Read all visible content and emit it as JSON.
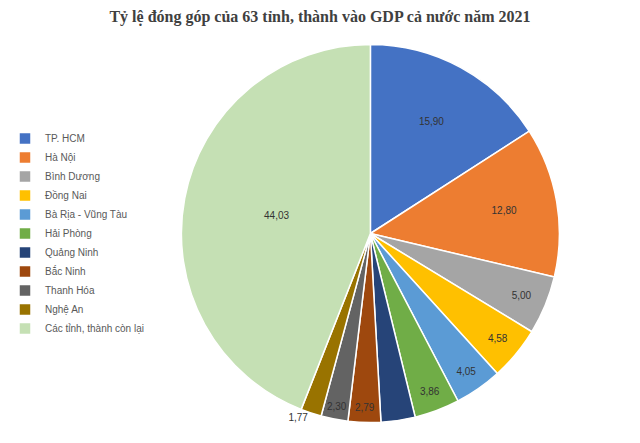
{
  "chart_data": {
    "type": "pie",
    "title": "Tỷ lệ đóng góp của 63 tỉnh, thành vào GDP cả nước năm 2021",
    "categories": [
      "TP. HCM",
      "Hà Nội",
      "Bình Dương",
      "Đồng Nai",
      "Bà Rịa - Vũng Tàu",
      "Hải Phòng",
      "Quảng Ninh",
      "Bắc Ninh",
      "Thanh Hóa",
      "Nghệ An",
      "Các tỉnh, thành còn lại"
    ],
    "values": [
      15.9,
      12.8,
      5.0,
      4.58,
      4.05,
      3.86,
      2.92,
      2.79,
      2.3,
      1.77,
      44.03
    ],
    "value_labels": [
      "15,90",
      "12,80",
      "5,00",
      "4,58",
      "4,05",
      "3,86",
      null,
      "2,79",
      "2,30",
      "1,77",
      "44,03"
    ],
    "colors": [
      "#4472c4",
      "#ed7d31",
      "#a5a5a5",
      "#ffc000",
      "#5b9bd5",
      "#70ad47",
      "#264478",
      "#9e480e",
      "#636363",
      "#997300",
      "#c5e0b4"
    ],
    "data_labels": true,
    "legend": "left"
  }
}
